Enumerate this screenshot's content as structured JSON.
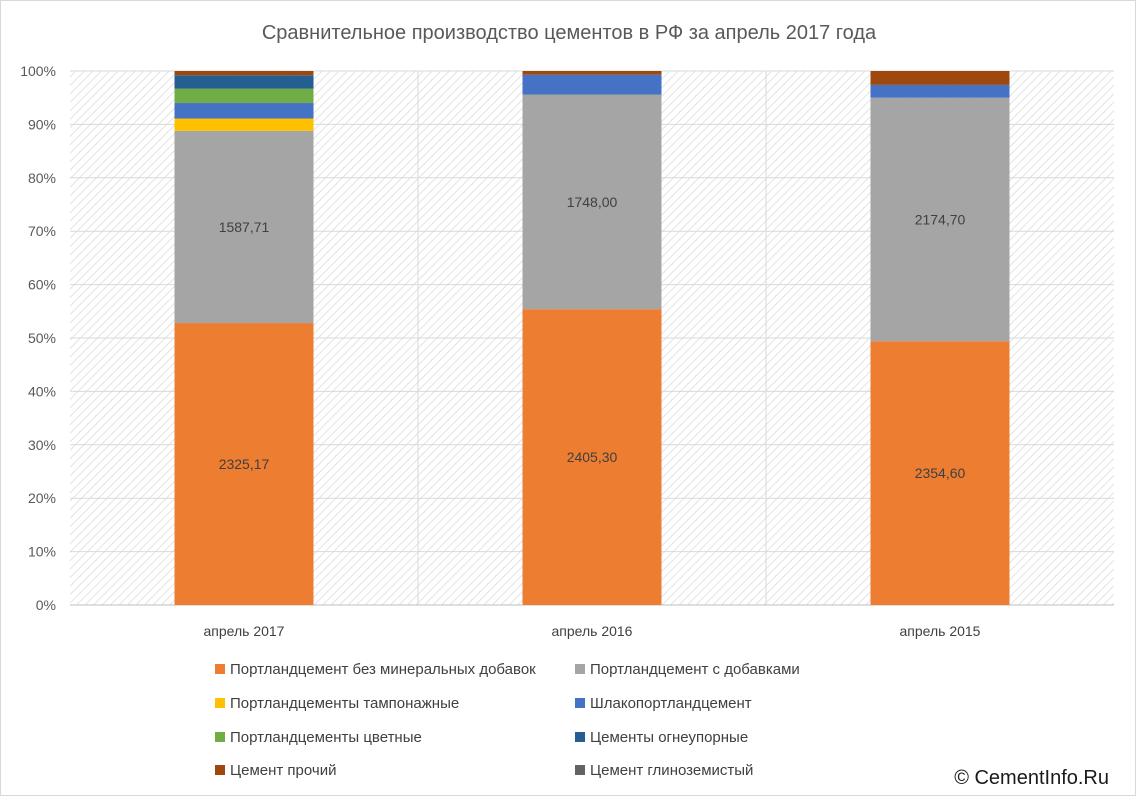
{
  "chart_data": {
    "type": "bar",
    "stacked": "percent",
    "title": "Сравнительное производство цементов в РФ за апрель 2017 года",
    "categories": [
      "апрель 2017",
      "апрель 2016",
      "апрель 2015"
    ],
    "ylim": [
      0,
      100
    ],
    "y_ticks": [
      "0%",
      "10%",
      "20%",
      "30%",
      "40%",
      "50%",
      "60%",
      "70%",
      "80%",
      "90%",
      "100%"
    ],
    "grid": true,
    "legend_position": "bottom",
    "series": [
      {
        "name": "Портландцемент без минеральных добавок",
        "color": "#ED7D31",
        "values": [
          52.8,
          55.4,
          49.4
        ],
        "labels": [
          "2325,17",
          "2405,30",
          "2354,60"
        ]
      },
      {
        "name": "Портландцемент с добавками",
        "color": "#A5A5A5",
        "values": [
          36.0,
          40.2,
          45.6
        ],
        "labels": [
          "1587,71",
          "1748,00",
          "2174,70"
        ]
      },
      {
        "name": "Портландцементы тампонажные",
        "color": "#FFC000",
        "values": [
          2.3,
          0.0,
          0.0
        ]
      },
      {
        "name": "Шлакопортландцемент",
        "color": "#4472C4",
        "values": [
          2.9,
          3.7,
          2.4
        ]
      },
      {
        "name": "Портландцементы цветные",
        "color": "#70AD47",
        "values": [
          2.7,
          0.0,
          0.0
        ]
      },
      {
        "name": "Цементы огнеупорные",
        "color": "#255E91",
        "values": [
          2.5,
          0.0,
          0.0
        ]
      },
      {
        "name": "Цемент прочий",
        "color": "#9E480E",
        "values": [
          0.8,
          0.7,
          2.6
        ]
      },
      {
        "name": "Цемент глиноземистый",
        "color": "#636363",
        "values": [
          0.0,
          0.0,
          0.0
        ]
      }
    ]
  },
  "watermark": "© CementInfo.Ru"
}
